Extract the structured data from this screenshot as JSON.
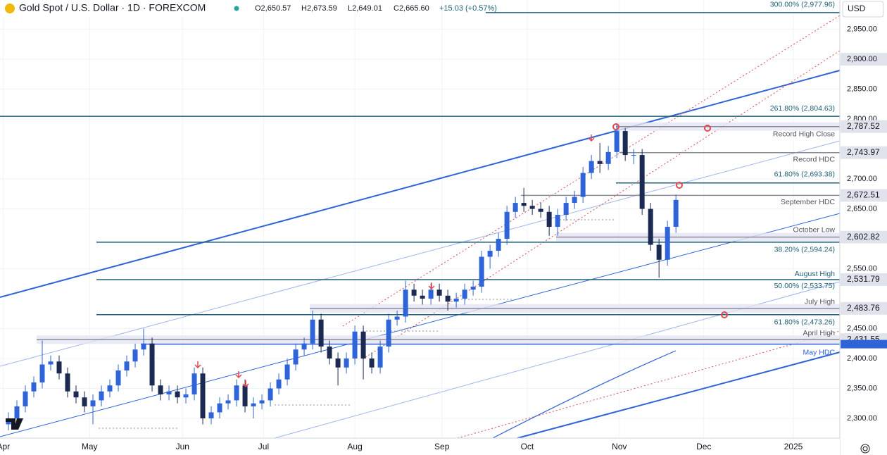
{
  "header": {
    "title": "Gold Spot / U.S. Dollar · 1D · FOREXCOM",
    "ohlc": [
      "O2,650.57",
      "H2,673.59",
      "L2,649.01",
      "C2,665.60"
    ],
    "change": "+15.03 (+0.57%)",
    "currency": "USD"
  },
  "chart_data": {
    "type": "candlestick",
    "up_color": "#2f63d8",
    "down_color": "#1c2a52",
    "grid": true,
    "xlim": [
      -1,
      98.4
    ],
    "xticks": [
      {
        "value": -0.6,
        "label": "Apr"
      },
      {
        "value": 9.6,
        "label": "May"
      },
      {
        "value": 20.6,
        "label": "Jun"
      },
      {
        "value": 30.2,
        "label": "Jul"
      },
      {
        "value": 41,
        "label": "Aug"
      },
      {
        "value": 51.3,
        "label": "Sep"
      },
      {
        "value": 61.4,
        "label": "Oct"
      },
      {
        "value": 72.3,
        "label": "Nov"
      },
      {
        "value": 82.3,
        "label": "Dec"
      },
      {
        "value": 92.9,
        "label": "2025"
      }
    ],
    "ylim": [
      2267,
      2999
    ],
    "yticks": [
      {
        "value": 2950,
        "label": "2,950.00"
      },
      {
        "value": 2900,
        "label": "2,900.00"
      },
      {
        "value": 2850,
        "label": "2,850.00"
      },
      {
        "value": 2800,
        "label": "2,800.00"
      },
      {
        "value": 2700,
        "label": "2,700.00"
      },
      {
        "value": 2650,
        "label": "2,650.00"
      },
      {
        "value": 2550,
        "label": "2,550.00"
      },
      {
        "value": 2450,
        "label": "2,450.00"
      },
      {
        "value": 2400,
        "label": "2,400.00"
      },
      {
        "value": 2350,
        "label": "2,350.00"
      },
      {
        "value": 2300,
        "label": "2,300.00"
      }
    ],
    "open": [
      2290,
      2300,
      2320,
      2345,
      2360,
      2390,
      2395,
      2375,
      2345,
      2335,
      2320,
      2330,
      2345,
      2355,
      2380,
      2395,
      2415,
      2425,
      2355,
      2340,
      2345,
      2335,
      2340,
      2375,
      2300,
      2310,
      2325,
      2330,
      2355,
      2320,
      2325,
      2330,
      2350,
      2365,
      2390,
      2415,
      2425,
      2465,
      2420,
      2400,
      2385,
      2400,
      2445,
      2400,
      2385,
      2420,
      2465,
      2470,
      2515,
      2505,
      2500,
      2515,
      2505,
      2495,
      2500,
      2515,
      2520,
      2570,
      2580,
      2600,
      2645,
      2660,
      2655,
      2650,
      2645,
      2620,
      2640,
      2660,
      2670,
      2710,
      2730,
      2725,
      2745,
      2780,
      2740,
      2740,
      2650,
      2590,
      2565,
      2620
    ],
    "high": [
      2310,
      2330,
      2355,
      2370,
      2430,
      2405,
      2405,
      2385,
      2355,
      2345,
      2340,
      2355,
      2365,
      2390,
      2405,
      2425,
      2450,
      2435,
      2365,
      2355,
      2355,
      2350,
      2385,
      2385,
      2320,
      2335,
      2340,
      2365,
      2365,
      2335,
      2340,
      2360,
      2375,
      2400,
      2425,
      2435,
      2480,
      2475,
      2430,
      2410,
      2410,
      2455,
      2455,
      2410,
      2430,
      2475,
      2480,
      2530,
      2525,
      2515,
      2525,
      2525,
      2515,
      2510,
      2525,
      2530,
      2580,
      2590,
      2610,
      2655,
      2670,
      2685,
      2665,
      2660,
      2655,
      2650,
      2670,
      2680,
      2720,
      2740,
      2760,
      2755,
      2790,
      2785,
      2750,
      2750,
      2660,
      2600,
      2630,
      2674
    ],
    "low": [
      2280,
      2290,
      2310,
      2335,
      2350,
      2380,
      2365,
      2335,
      2325,
      2310,
      2290,
      2320,
      2335,
      2345,
      2370,
      2385,
      2405,
      2345,
      2330,
      2330,
      2325,
      2325,
      2330,
      2290,
      2290,
      2300,
      2315,
      2320,
      2310,
      2300,
      2315,
      2320,
      2340,
      2355,
      2380,
      2405,
      2415,
      2410,
      2390,
      2355,
      2375,
      2390,
      2365,
      2375,
      2375,
      2410,
      2455,
      2460,
      2495,
      2490,
      2490,
      2495,
      2480,
      2485,
      2490,
      2505,
      2510,
      2550,
      2570,
      2590,
      2635,
      2645,
      2640,
      2635,
      2605,
      2605,
      2630,
      2650,
      2660,
      2700,
      2710,
      2715,
      2735,
      2730,
      2725,
      2640,
      2580,
      2535,
      2555,
      2610
    ],
    "close": [
      2300,
      2320,
      2345,
      2360,
      2390,
      2395,
      2375,
      2345,
      2335,
      2320,
      2330,
      2345,
      2355,
      2380,
      2395,
      2415,
      2425,
      2355,
      2340,
      2345,
      2335,
      2340,
      2375,
      2300,
      2310,
      2325,
      2330,
      2355,
      2320,
      2325,
      2330,
      2350,
      2365,
      2390,
      2415,
      2425,
      2465,
      2420,
      2400,
      2385,
      2400,
      2445,
      2400,
      2385,
      2420,
      2465,
      2470,
      2515,
      2505,
      2500,
      2515,
      2505,
      2495,
      2500,
      2515,
      2520,
      2570,
      2580,
      2600,
      2645,
      2660,
      2655,
      2650,
      2645,
      2620,
      2640,
      2660,
      2670,
      2710,
      2730,
      2725,
      2745,
      2780,
      2740,
      2740,
      2650,
      2590,
      2565,
      2620,
      2665
    ],
    "levels": [
      {
        "label": "300.00% (2,977.96)",
        "value": 2977.96,
        "color": "#1f5f7a"
      },
      {
        "label": "261.80% (2,804.63)",
        "value": 2804.63,
        "color": "#1f5f7a"
      },
      {
        "label": "Record High Close",
        "value": 2787.52,
        "axis_label": "2,787.52",
        "color": "#8a8d96"
      },
      {
        "label": "Record HDC",
        "value": 2743.97,
        "axis_label": "2,743.97",
        "color": "#8a8d96"
      },
      {
        "label": "61.80% (2,693.38)",
        "value": 2693.38,
        "color": "#1f5f7a"
      },
      {
        "label": "September HDC",
        "value": 2672.51,
        "axis_label": "2,672.51",
        "color": "#8a8d96"
      },
      {
        "label": "October Low",
        "value": 2602.82,
        "axis_label": "2,602.82",
        "color": "#8a8d96"
      },
      {
        "label": "38.20% (2,594.24)",
        "value": 2594.24,
        "color": "#1f5f7a"
      },
      {
        "label": "August High",
        "value": 2531.79,
        "axis_label": "2,531.79",
        "color": "#1f5f7a"
      },
      {
        "label": "50.00% (2,533.75)",
        "value": 2533.75,
        "color": "#1f5f7a"
      },
      {
        "label": "July High",
        "value": 2483.76,
        "axis_label": "2,483.76",
        "color": "#8a8d96"
      },
      {
        "label": "61.80% (2,473.26)",
        "value": 2473.26,
        "color": "#1f5f7a"
      },
      {
        "label": "April High",
        "value": 2431.55,
        "axis_label": "2,431.55",
        "color": "#8a8d96"
      },
      {
        "label": "May HDC",
        "value": 2424,
        "color": "#2f63d8"
      }
    ]
  }
}
